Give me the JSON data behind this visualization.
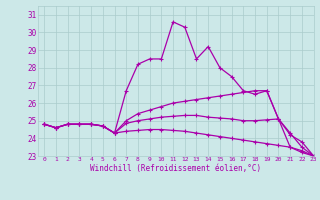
{
  "xlabel": "Windchill (Refroidissement éolien,°C)",
  "xlim": [
    -0.5,
    23
  ],
  "ylim": [
    23,
    31.5
  ],
  "yticks": [
    23,
    24,
    25,
    26,
    27,
    28,
    29,
    30,
    31
  ],
  "xticks": [
    0,
    1,
    2,
    3,
    4,
    5,
    6,
    7,
    8,
    9,
    10,
    11,
    12,
    13,
    14,
    15,
    16,
    17,
    18,
    19,
    20,
    21,
    22,
    23
  ],
  "bg_color": "#cce8e8",
  "grid_color": "#aacccc",
  "line_color": "#aa00aa",
  "line1_x": [
    0,
    1,
    2,
    3,
    4,
    5,
    6,
    7,
    8,
    9,
    10,
    11,
    12,
    13,
    14,
    15,
    16,
    17,
    18,
    19,
    20,
    21,
    22,
    23
  ],
  "line1_y": [
    24.8,
    24.6,
    24.8,
    24.8,
    24.8,
    24.7,
    24.3,
    26.7,
    28.2,
    28.5,
    28.5,
    30.6,
    30.3,
    28.5,
    29.2,
    28.0,
    27.5,
    26.7,
    26.5,
    26.7,
    25.1,
    23.5,
    23.2,
    23.0
  ],
  "line2_x": [
    0,
    1,
    2,
    3,
    4,
    5,
    6,
    7,
    8,
    9,
    10,
    11,
    12,
    13,
    14,
    15,
    16,
    17,
    18,
    19,
    20,
    21,
    22,
    23
  ],
  "line2_y": [
    24.8,
    24.6,
    24.8,
    24.8,
    24.8,
    24.7,
    24.3,
    25.0,
    25.4,
    25.6,
    25.8,
    26.0,
    26.1,
    26.2,
    26.3,
    26.4,
    26.5,
    26.6,
    26.7,
    26.7,
    25.1,
    24.2,
    23.8,
    23.0
  ],
  "line3_x": [
    0,
    1,
    2,
    3,
    4,
    5,
    6,
    7,
    8,
    9,
    10,
    11,
    12,
    13,
    14,
    15,
    16,
    17,
    18,
    19,
    20,
    21,
    22,
    23
  ],
  "line3_y": [
    24.8,
    24.6,
    24.8,
    24.8,
    24.8,
    24.7,
    24.3,
    24.85,
    25.0,
    25.1,
    25.2,
    25.25,
    25.3,
    25.3,
    25.2,
    25.15,
    25.1,
    25.0,
    25.0,
    25.05,
    25.1,
    24.3,
    23.5,
    23.0
  ],
  "line4_x": [
    0,
    1,
    2,
    3,
    4,
    5,
    6,
    7,
    8,
    9,
    10,
    11,
    12,
    13,
    14,
    15,
    16,
    17,
    18,
    19,
    20,
    21,
    22,
    23
  ],
  "line4_y": [
    24.8,
    24.6,
    24.8,
    24.8,
    24.8,
    24.7,
    24.3,
    24.4,
    24.45,
    24.5,
    24.5,
    24.45,
    24.4,
    24.3,
    24.2,
    24.1,
    24.0,
    23.9,
    23.8,
    23.7,
    23.6,
    23.5,
    23.3,
    23.0
  ]
}
